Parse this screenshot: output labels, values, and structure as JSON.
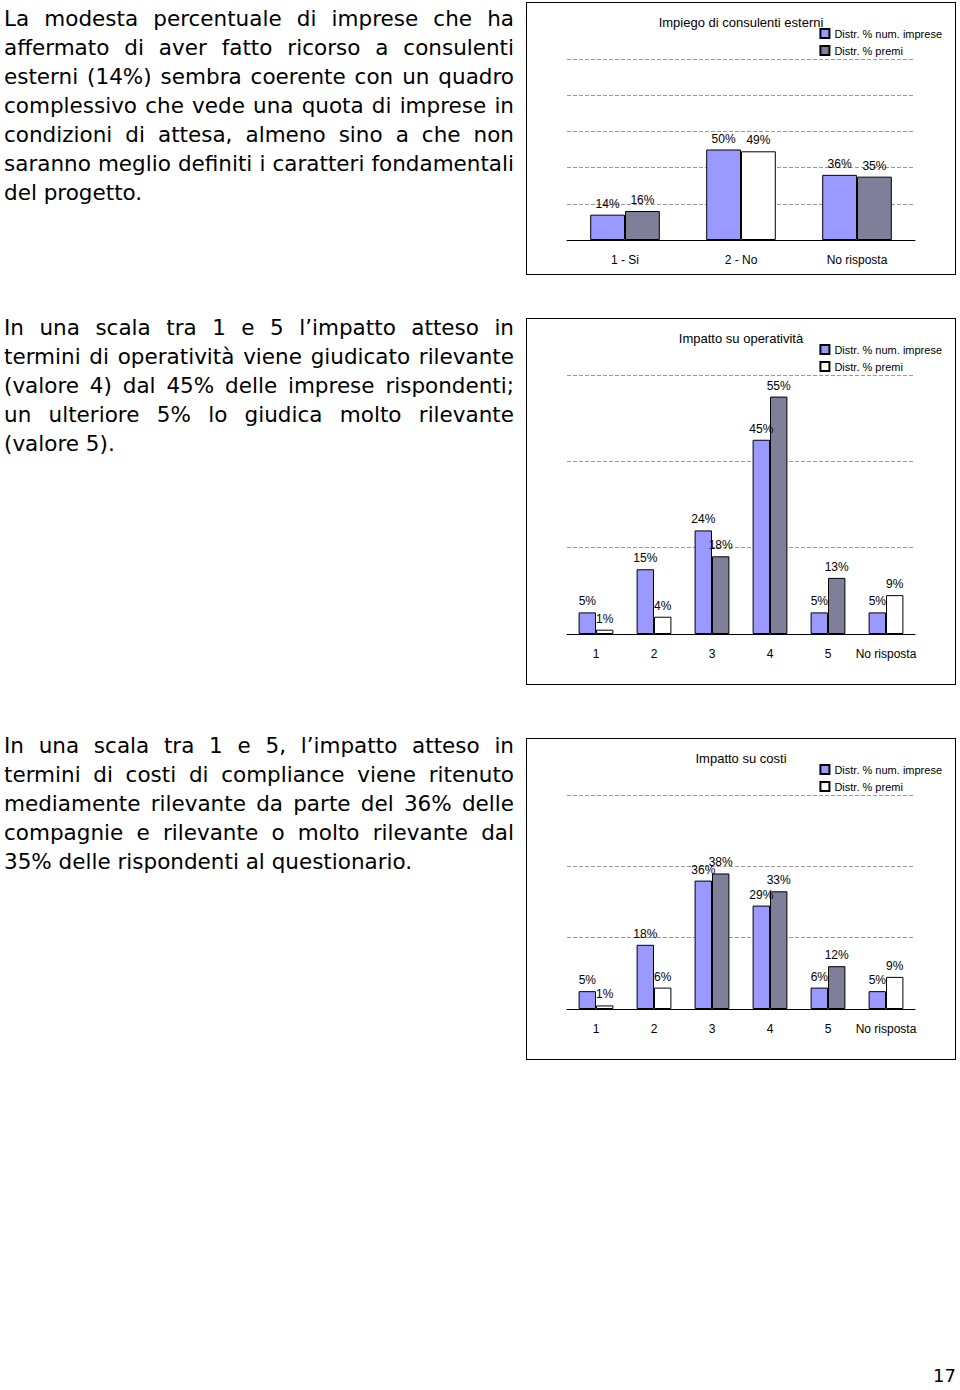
{
  "page_number": 17,
  "paragraphs": [
    "La modesta percentuale di imprese che ha affermato di aver fatto ricorso a consulenti esterni (14%) sembra coerente con un quadro complessivo che vede una quota di imprese in condizioni di attesa, almeno sino a che non saranno meglio definiti i caratteri fondamentali del progetto.",
    "In una scala tra 1 e 5 l’impatto atteso in termini di operatività viene giudicato rilevante (valore 4) dal 45% delle imprese rispondenti; un ulteriore 5% lo giudica molto rilevante (valore 5).",
    "In una scala tra 1 e 5, l’impatto atteso in termini di costi di compliance viene ritenuto mediamente rilevante da parte del 36% delle compagnie e rilevante o molto rilevante dal 35% delle rispondenti al questionario."
  ],
  "chart_data": [
    {
      "type": "bar",
      "title": "Impiego di consulenti esterni",
      "categories": [
        "1 - Si",
        "2 - No",
        "No risposta"
      ],
      "series": [
        {
          "name": "Distr. % num. imprese",
          "color": "#9999ff",
          "values": [
            14,
            50,
            36
          ],
          "value_labels": [
            "14%",
            "50%",
            "36%"
          ]
        },
        {
          "name": "Distr. % premi",
          "color": "#7f7f99",
          "colors": [
            "#7f7f99",
            "#ffffff",
            "#7f7f99"
          ],
          "values": [
            16,
            49,
            35
          ],
          "value_labels": [
            "16%",
            "49%",
            "35%"
          ]
        }
      ],
      "ylim": [
        0,
        100
      ],
      "yticks": [
        0,
        20,
        40,
        60,
        80,
        100
      ],
      "grid": true,
      "legend": "top-right",
      "data_labels": true,
      "tick_labels": "x"
    },
    {
      "type": "bar",
      "title": "Impatto su operatività",
      "categories": [
        "1",
        "2",
        "3",
        "4",
        "5",
        "No risposta"
      ],
      "series": [
        {
          "name": "Distr. % num. imprese",
          "color": "#9999ff",
          "values": [
            5,
            15,
            24,
            45,
            5,
            5
          ],
          "value_labels": [
            "5%",
            "15%",
            "24%",
            "45%",
            "5%",
            "5%"
          ]
        },
        {
          "name": "Distr. % premi",
          "color": "#ffffff",
          "colors": [
            "#ffffff",
            "#ffffff",
            "#7f7f99",
            "#7f7f99",
            "#7f7f99",
            "#ffffff"
          ],
          "values": [
            1,
            4,
            18,
            55,
            13,
            9
          ],
          "value_labels": [
            "1%",
            "4%",
            "18%",
            "55%",
            "13%",
            "9%"
          ]
        }
      ],
      "ylim": [
        0,
        60
      ],
      "yticks": [
        0,
        20,
        40,
        60
      ],
      "grid": true,
      "legend": "top-right",
      "data_labels": true,
      "tick_labels": "x"
    },
    {
      "type": "bar",
      "title": "Impatto su costi",
      "categories": [
        "1",
        "2",
        "3",
        "4",
        "5",
        "No risposta"
      ],
      "series": [
        {
          "name": "Distr. % num. imprese",
          "color": "#9999ff",
          "values": [
            5,
            18,
            36,
            29,
            6,
            5
          ],
          "value_labels": [
            "5%",
            "18%",
            "36%",
            "29%",
            "6%",
            "5%"
          ]
        },
        {
          "name": "Distr. % premi",
          "color": "#ffffff",
          "colors": [
            "#ffffff",
            "#ffffff",
            "#7f7f99",
            "#7f7f99",
            "#7f7f99",
            "#ffffff"
          ],
          "values": [
            1,
            6,
            38,
            33,
            12,
            9
          ],
          "value_labels": [
            "1%",
            "6%",
            "38%",
            "33%",
            "12%",
            "9%"
          ]
        }
      ],
      "ylim": [
        0,
        60
      ],
      "yticks": [
        0,
        20,
        40,
        60
      ],
      "grid": true,
      "legend": "top-right",
      "data_labels": true,
      "tick_labels": "x"
    }
  ]
}
